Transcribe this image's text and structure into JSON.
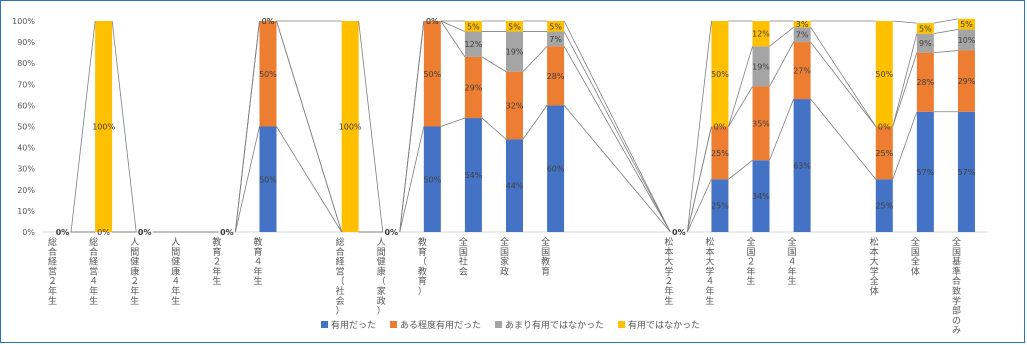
{
  "chart_data": {
    "type": "bar",
    "stacked": true,
    "percent": true,
    "ylim": [
      0,
      100
    ],
    "y_ticks": [
      "0%",
      "10%",
      "20%",
      "30%",
      "40%",
      "50%",
      "60%",
      "70%",
      "80%",
      "90%",
      "100%"
    ],
    "grid": false,
    "series_lines": true,
    "legend_position": "bottom",
    "categories": [
      "総合経営２年生",
      "総合経営４年生",
      "人間健康２年生",
      "人間健康４年生",
      "教育２年生",
      "教育４年生",
      "",
      "総合経営（社会）",
      "人間健康（家政）",
      "教育（教育）",
      "全国社会",
      "全国家政",
      "全国教育",
      "",
      "",
      "松本大学２年生",
      "松本大学４年生",
      "全国２年生",
      "全国４年生",
      "",
      "松本大学全体",
      "全国全体",
      "全国基準合致学部のみ"
    ],
    "series": [
      {
        "name": "有用だった",
        "color": "#4472c4",
        "values": [
          0,
          0,
          0,
          null,
          0,
          50,
          null,
          0,
          0,
          50,
          54,
          44,
          60,
          null,
          null,
          0,
          25,
          34,
          63,
          null,
          25,
          57,
          57
        ]
      },
      {
        "name": "ある程度有用だった",
        "color": "#ed7d31",
        "values": [
          0,
          0,
          0,
          null,
          0,
          50,
          null,
          0,
          0,
          50,
          29,
          32,
          28,
          null,
          null,
          0,
          25,
          35,
          27,
          null,
          25,
          28,
          29
        ]
      },
      {
        "name": "あまり有用ではなかった",
        "color": "#a5a5a5",
        "values": [
          0,
          0,
          0,
          null,
          0,
          0,
          null,
          0,
          0,
          0,
          12,
          19,
          7,
          null,
          null,
          0,
          0,
          19,
          7,
          null,
          0,
          9,
          10
        ]
      },
      {
        "name": "有用ではなかった",
        "color": "#ffc000",
        "values": [
          0,
          100,
          0,
          null,
          0,
          0,
          null,
          100,
          0,
          0,
          5,
          5,
          5,
          null,
          null,
          0,
          50,
          12,
          3,
          null,
          50,
          5,
          5
        ]
      }
    ],
    "data_labels": [
      [
        "0%",
        "0%",
        "0%",
        "",
        "0%",
        "50%",
        "",
        "",
        "0%",
        "50%",
        "54%",
        "44%",
        "60%",
        "",
        "",
        "0%",
        "25%",
        "34%",
        "63%",
        "",
        "25%",
        "57%",
        "57%"
      ],
      [
        "",
        "",
        "",
        "",
        "",
        "50%",
        "",
        "",
        "",
        "50%",
        "29%",
        "32%",
        "28%",
        "",
        "",
        "",
        "25%",
        "35%",
        "27%",
        "",
        "25%",
        "28%",
        "29%"
      ],
      [
        "",
        "",
        "",
        "",
        "",
        "0%",
        "",
        "",
        "",
        "0%",
        "12%",
        "19%",
        "7%",
        "",
        "",
        "",
        "0%",
        "19%",
        "7%",
        "",
        "0%",
        "9%",
        "10%"
      ],
      [
        "",
        "100%",
        "",
        "",
        "",
        "0%",
        "",
        "100%",
        "",
        "0%",
        "5%",
        "5%",
        "5%",
        "",
        "",
        "",
        "50%",
        "12%",
        "3%",
        "",
        "50%",
        "5%",
        "5%"
      ]
    ]
  }
}
